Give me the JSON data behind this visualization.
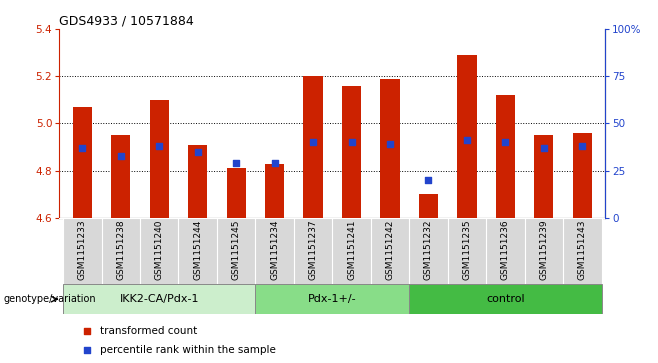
{
  "title": "GDS4933 / 10571884",
  "samples": [
    "GSM1151233",
    "GSM1151238",
    "GSM1151240",
    "GSM1151244",
    "GSM1151245",
    "GSM1151234",
    "GSM1151237",
    "GSM1151241",
    "GSM1151242",
    "GSM1151232",
    "GSM1151235",
    "GSM1151236",
    "GSM1151239",
    "GSM1151243"
  ],
  "transformed_counts": [
    5.07,
    4.95,
    5.1,
    4.91,
    4.81,
    4.83,
    5.2,
    5.16,
    5.19,
    4.7,
    5.29,
    5.12,
    4.95,
    4.96
  ],
  "percentile_ranks": [
    37,
    33,
    38,
    35,
    29,
    29,
    40,
    40,
    39,
    20,
    41,
    40,
    37,
    38
  ],
  "bar_color": "#cc2200",
  "dot_color": "#2244cc",
  "ylim_left": [
    4.6,
    5.4
  ],
  "ylim_right": [
    0,
    100
  ],
  "yticks_left": [
    4.6,
    4.8,
    5.0,
    5.2,
    5.4
  ],
  "yticks_right": [
    0,
    25,
    50,
    75,
    100
  ],
  "ytick_labels_right": [
    "0",
    "25",
    "50",
    "75",
    "100%"
  ],
  "groups": [
    {
      "label": "IKK2-CA/Pdx-1",
      "count": 5,
      "color": "#cceecc"
    },
    {
      "label": "Pdx-1+/-",
      "count": 4,
      "color": "#88dd88"
    },
    {
      "label": "control",
      "count": 5,
      "color": "#44bb44"
    }
  ],
  "group_label_prefix": "genotype/variation",
  "legend_items": [
    {
      "color": "#cc2200",
      "label": "transformed count"
    },
    {
      "color": "#2244cc",
      "label": "percentile rank within the sample"
    }
  ],
  "bar_bottom": 4.6,
  "dot_size": 18,
  "bar_width": 0.5,
  "grid_color": "black",
  "grid_linewidth": 0.7
}
